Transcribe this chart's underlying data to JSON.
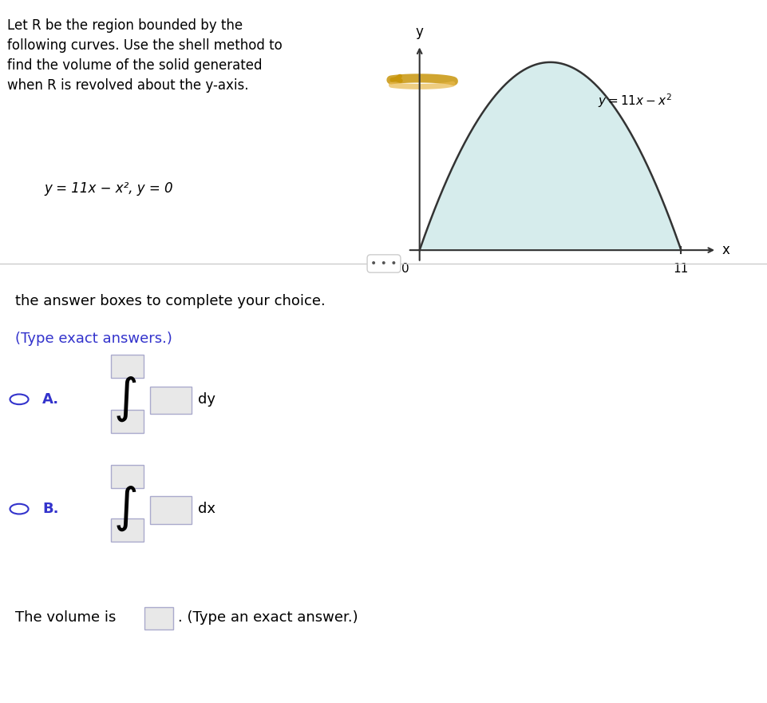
{
  "title_text": "Let R be the region bounded by the\nfollowing curves. Use the shell method to\nfind the volume of the solid generated\nwhen R is revolved about the y-axis.",
  "equation_text": "y = 11x − x², y = 0",
  "curve_label": "y = 11x − x",
  "curve_label_exp": "2",
  "fill_color": "#d6ecec",
  "curve_color": "#333333",
  "axis_color": "#333333",
  "x_zero_label": "0",
  "x_end_label": "11",
  "x_axis_label": "x",
  "y_axis_label": "y",
  "divider_text": "• • •",
  "answer_text": "the answer boxes to complete your choice.",
  "type_exact": "(Type exact answers.)",
  "option_A_label": "A.",
  "option_A_dy": "dy",
  "option_B_label": "B.",
  "option_B_dx": "dx",
  "volume_text": "The volume is",
  "volume_suffix": ". (Type an exact answer.)",
  "blue_color": "#3333cc",
  "background_color": "#ffffff",
  "text_color": "#000000"
}
